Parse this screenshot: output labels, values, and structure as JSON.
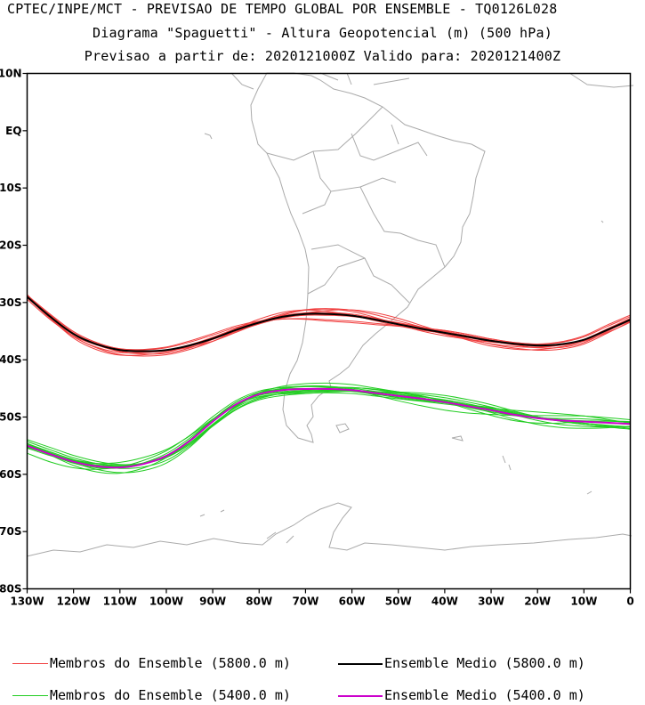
{
  "header": {
    "line1": "CPTEC/INPE/MCT - PREVISAO DE TEMPO GLOBAL POR ENSEMBLE - TQ0126L028",
    "line2": "Diagrama \"Spaguetti\" - Altura Geopotencial (m) (500 hPa)",
    "line3": "Previsao a partir de: 2020121000Z  Valido para: 2020121400Z"
  },
  "chart_data": {
    "type": "line",
    "projection": "cylindrical lat-lon",
    "xlim": [
      -130,
      0
    ],
    "ylim": [
      -80,
      10
    ],
    "x_ticks": [
      {
        "value": -130,
        "label": "130W"
      },
      {
        "value": -120,
        "label": "120W"
      },
      {
        "value": -110,
        "label": "110W"
      },
      {
        "value": -100,
        "label": "100W"
      },
      {
        "value": -90,
        "label": "90W"
      },
      {
        "value": -80,
        "label": "80W"
      },
      {
        "value": -70,
        "label": "70W"
      },
      {
        "value": -60,
        "label": "60W"
      },
      {
        "value": -50,
        "label": "50W"
      },
      {
        "value": -40,
        "label": "40W"
      },
      {
        "value": -30,
        "label": "30W"
      },
      {
        "value": -20,
        "label": "20W"
      },
      {
        "value": -10,
        "label": "10W"
      },
      {
        "value": 0,
        "label": "0"
      }
    ],
    "y_ticks": [
      {
        "value": 10,
        "label": "10N"
      },
      {
        "value": 0,
        "label": "EQ"
      },
      {
        "value": -10,
        "label": "10S"
      },
      {
        "value": -20,
        "label": "20S"
      },
      {
        "value": -30,
        "label": "30S"
      },
      {
        "value": -40,
        "label": "40S"
      },
      {
        "value": -50,
        "label": "50S"
      },
      {
        "value": -60,
        "label": "60S"
      },
      {
        "value": -70,
        "label": "70S"
      },
      {
        "value": -80,
        "label": "80S"
      }
    ],
    "x": [
      -130,
      -125,
      -120,
      -115,
      -110,
      -105,
      -100,
      -95,
      -90,
      -85,
      -80,
      -75,
      -70,
      -65,
      -60,
      -55,
      -50,
      -45,
      -40,
      -35,
      -30,
      -25,
      -20,
      -15,
      -10,
      -5,
      0
    ],
    "series": [
      {
        "name": "Membros do Ensemble (5800.0 m)",
        "role": "member",
        "color": "#f04040",
        "members": 12,
        "mean_lat": [
          -29,
          -32.5,
          -35.5,
          -37.3,
          -38.3,
          -38.5,
          -38.3,
          -37.5,
          -36.3,
          -34.8,
          -33.5,
          -32.5,
          -32,
          -32,
          -32.3,
          -33,
          -33.8,
          -34.6,
          -35.3,
          -36,
          -36.7,
          -37.2,
          -37.5,
          -37.3,
          -36.5,
          -34.8,
          -33
        ]
      },
      {
        "name": "Ensemble Medio (5800.0 m)",
        "role": "mean",
        "color": "#000000",
        "lat": [
          -29,
          -32.5,
          -35.5,
          -37.3,
          -38.3,
          -38.5,
          -38.3,
          -37.5,
          -36.3,
          -34.8,
          -33.5,
          -32.5,
          -32,
          -32,
          -32.3,
          -33,
          -33.8,
          -34.6,
          -35.3,
          -36,
          -36.7,
          -37.2,
          -37.5,
          -37.3,
          -36.5,
          -34.8,
          -33
        ]
      },
      {
        "name": "Membros do Ensemble (5400.0 m)",
        "role": "member",
        "color": "#22cc22",
        "members": 12,
        "mean_lat": [
          -55,
          -56.5,
          -57.8,
          -58.6,
          -58.8,
          -58.2,
          -56.8,
          -54.2,
          -50.8,
          -47.8,
          -46,
          -45.3,
          -45.1,
          -45.1,
          -45.3,
          -45.8,
          -46.3,
          -46.8,
          -47.4,
          -48.1,
          -48.8,
          -49.6,
          -50.2,
          -50.6,
          -50.8,
          -51,
          -51.2
        ]
      },
      {
        "name": "Ensemble Medio (5400.0 m)",
        "role": "mean",
        "color": "#cc00cc",
        "lat": [
          -55,
          -56.5,
          -57.8,
          -58.6,
          -58.8,
          -58.2,
          -56.8,
          -54.2,
          -50.8,
          -47.8,
          -46,
          -45.3,
          -45.1,
          -45.1,
          -45.3,
          -45.8,
          -46.3,
          -46.8,
          -47.4,
          -48.1,
          -48.8,
          -49.6,
          -50.2,
          -50.6,
          -50.8,
          -51,
          -51.2
        ]
      }
    ],
    "colors": {
      "coastline": "#aaaaaa",
      "frame": "#000000"
    }
  },
  "legend": [
    {
      "label": "Membros do Ensemble (5800.0 m)",
      "color": "#f04040"
    },
    {
      "label": "Ensemble Medio (5800.0 m)",
      "color": "#000000"
    },
    {
      "label": "Membros do Ensemble (5400.0 m)",
      "color": "#22cc22"
    },
    {
      "label": "Ensemble Medio (5400.0 m)",
      "color": "#cc00cc"
    }
  ]
}
